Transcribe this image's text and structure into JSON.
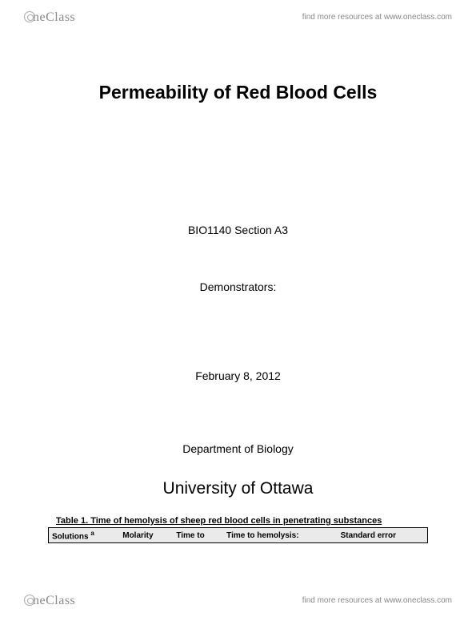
{
  "brand": {
    "name": "neClass",
    "tagline": "find more resources at www.oneclass.com"
  },
  "document": {
    "title": "Permeability of Red Blood Cells",
    "course_section": "BIO1140 Section A3",
    "demonstrators_label": "Demonstrators:",
    "date": "February 8, 2012",
    "department": "Department of Biology",
    "university": "University of Ottawa"
  },
  "table": {
    "caption": "Table 1. Time of hemolysis of sheep red blood cells in penetrating substances",
    "columns": [
      "Solutions",
      "Molarity",
      "Time to",
      "Time to hemolysis:",
      "Standard error"
    ],
    "solutions_marker": "a",
    "header_bg": "#eaeaea",
    "border_color": "#000000"
  },
  "colors": {
    "background": "#ffffff",
    "text": "#000000",
    "muted": "#888888"
  }
}
